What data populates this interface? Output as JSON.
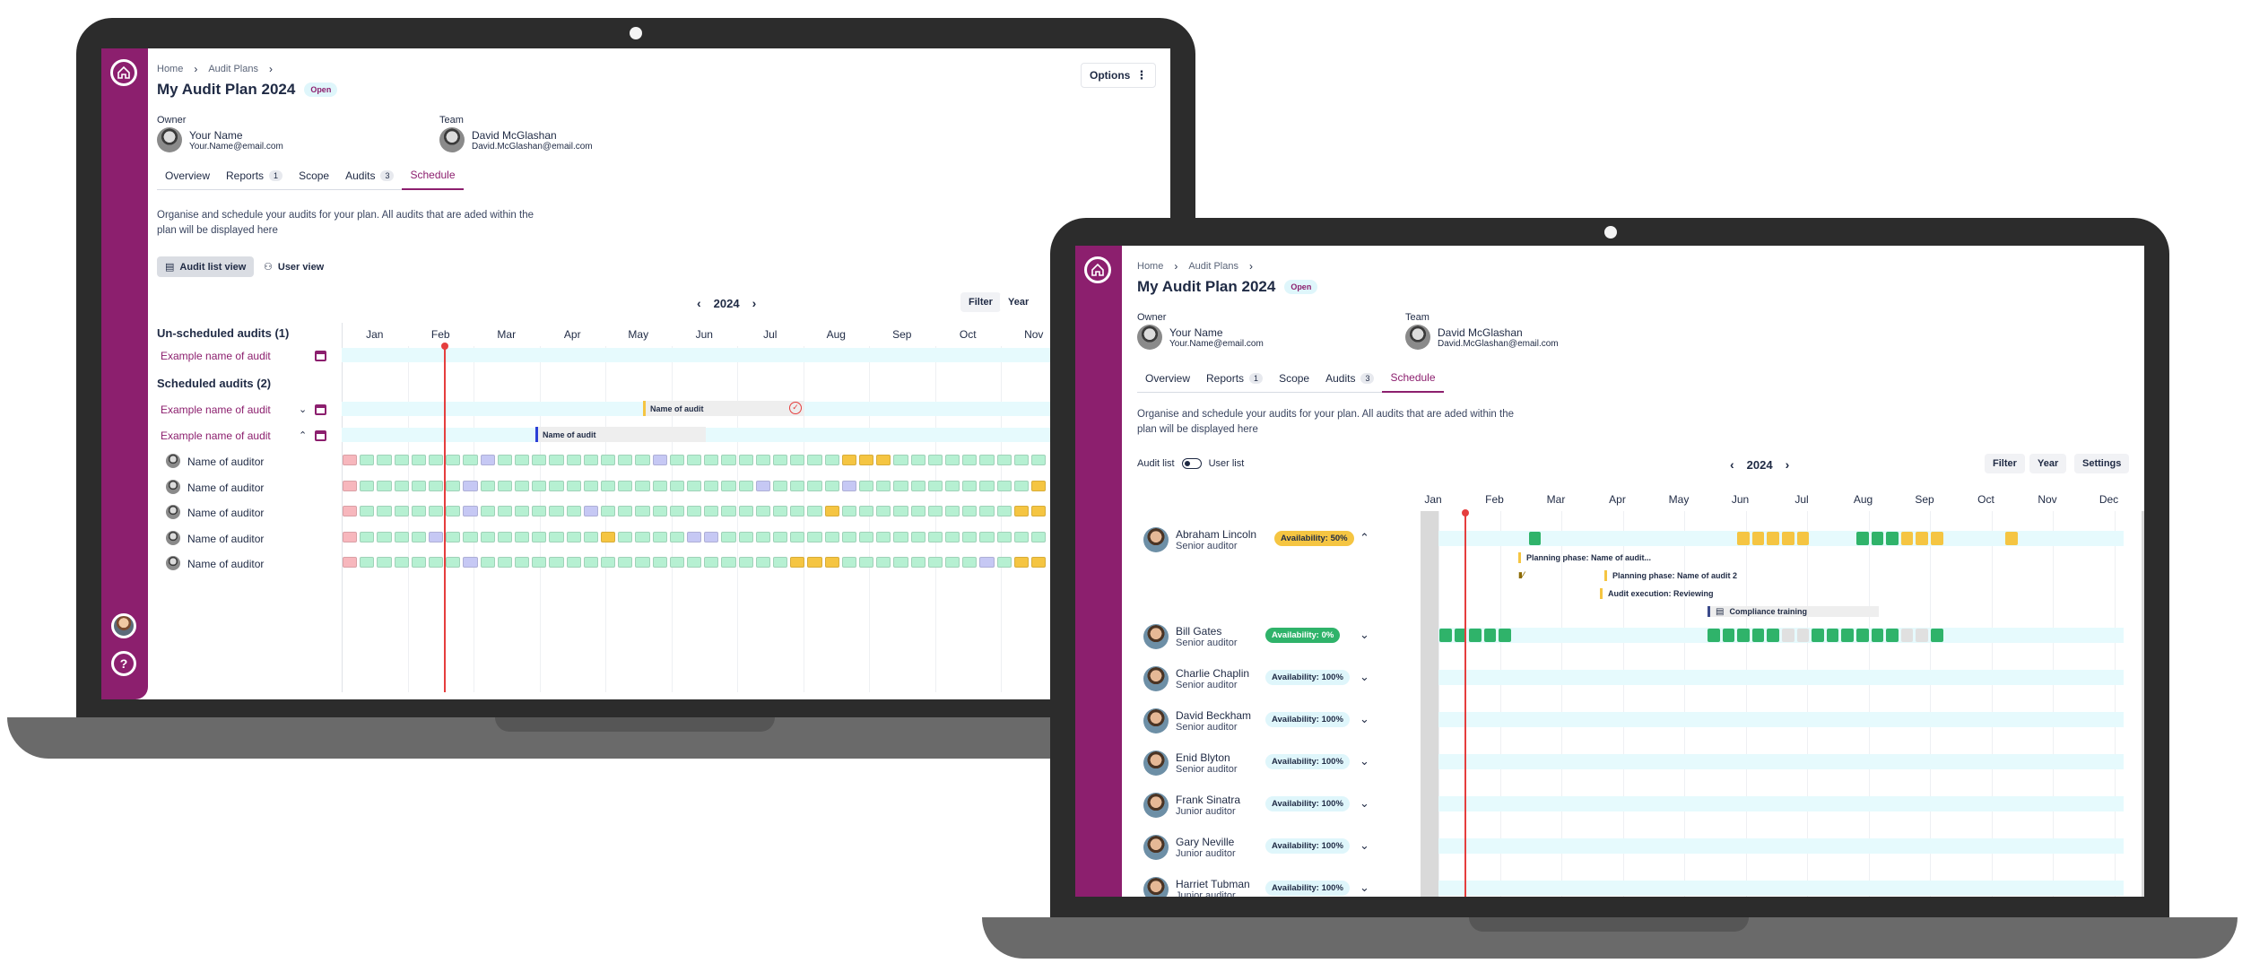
{
  "app": {
    "breadcrumb": [
      "Home",
      "Audit Plans"
    ],
    "title": "My Audit Plan 2024",
    "status": "Open",
    "options_label": "Options",
    "owner_label": "Owner",
    "owner_name": "Your Name",
    "owner_email": "Your.Name@email.com",
    "team_label": "Team",
    "team_name": "David McGlashan",
    "team_email": "David.McGlashan@email.com",
    "tabs": [
      {
        "label": "Overview",
        "count": ""
      },
      {
        "label": "Reports",
        "count": "1"
      },
      {
        "label": "Scope",
        "count": ""
      },
      {
        "label": "Audits",
        "count": "3"
      },
      {
        "label": "Schedule",
        "count": ""
      }
    ],
    "description": "Organise and schedule your audits for your plan. All audits that are aded within the plan will be displayed here",
    "year": "2024",
    "months": [
      "Jan",
      "Feb",
      "Mar",
      "Apr",
      "May",
      "Jun",
      "Jul",
      "Aug",
      "Sep",
      "Oct",
      "Nov",
      "Dec"
    ],
    "filter_label": "Filter",
    "period_label": "Year",
    "settings_label": "Settings"
  },
  "left": {
    "audit_list_view": "Audit list view",
    "user_view": "User view",
    "unscheduled_title": "Un-scheduled audits (1)",
    "scheduled_title": "Scheduled audits (2)",
    "unscheduled": [
      "Example name of audit"
    ],
    "scheduled": [
      "Example name of audit",
      "Example name of audit"
    ],
    "bar_label": "Name of audit",
    "auditors": [
      "Name of auditor",
      "Name of auditor",
      "Name of auditor",
      "Name of auditor",
      "Name of auditor"
    ]
  },
  "right": {
    "audit_list_label": "Audit list",
    "user_list_label": "User list",
    "users": [
      {
        "name": "Abraham Lincoln",
        "role": "Senior auditor",
        "availability": "Availability: 50%",
        "tone": "yellow"
      },
      {
        "name": "Bill Gates",
        "role": "Senior auditor",
        "availability": "Availability: 0%",
        "tone": "green"
      },
      {
        "name": "Charlie Chaplin",
        "role": "Senior auditor",
        "availability": "Availability: 100%",
        "tone": "blue"
      },
      {
        "name": "David Beckham",
        "role": "Senior auditor",
        "availability": "Availability: 100%",
        "tone": "blue"
      },
      {
        "name": "Enid Blyton",
        "role": "Senior auditor",
        "availability": "Availability: 100%",
        "tone": "blue"
      },
      {
        "name": "Frank Sinatra",
        "role": "Junior auditor",
        "availability": "Availability: 100%",
        "tone": "blue"
      },
      {
        "name": "Gary Neville",
        "role": "Junior auditor",
        "availability": "Availability: 100%",
        "tone": "blue"
      },
      {
        "name": "Harriet Tubman",
        "role": "Junior auditor",
        "availability": "Availability: 100%",
        "tone": "blue"
      }
    ],
    "phases": [
      "Planning phase: Name of audit...",
      "Planning phase: Name of audit 2",
      "Audit execution: Reviewing",
      "Compliance training"
    ]
  },
  "colors": {
    "brand": "#8c1f6e",
    "today": "#e53e3e",
    "free": "#b6f0d2",
    "busy": "#2fb36a",
    "partial": "#f5c542",
    "holiday": "#f7b7bd",
    "leave": "#c6c8f4"
  }
}
